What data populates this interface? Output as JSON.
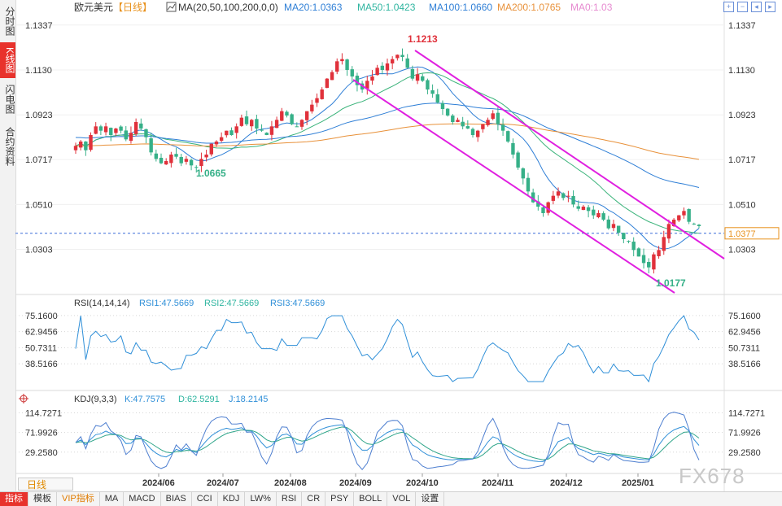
{
  "left_tabs": [
    {
      "label": "分时图",
      "active": false
    },
    {
      "label": "K线图",
      "active": true
    },
    {
      "label": "闪电图",
      "active": false
    },
    {
      "label": "合约资料",
      "active": false
    }
  ],
  "header": {
    "instrument": "欧元美元",
    "period_tag": "【日线】",
    "ma_label": "MA(20,50,100,200,0,0)",
    "ma_values": [
      {
        "text": "MA20:1.0363",
        "color": "#2f7fd6"
      },
      {
        "text": "MA50:1.0423",
        "color": "#2fb5a0"
      },
      {
        "text": "MA100:1.0660",
        "color": "#2f7fd6"
      },
      {
        "text": "MA200:1.0765",
        "color": "#e8913a"
      },
      {
        "text": "MA0:1.03",
        "color": "#e68ad0"
      }
    ]
  },
  "top_icons": [
    "zoom-in-icon",
    "zoom-out-icon",
    "prev-icon",
    "next-icon"
  ],
  "colors": {
    "up": "#e0313b",
    "down": "#36b088",
    "ma20": "#2f7fd6",
    "ma50": "#3ab37a",
    "ma100": "#2f7fd6",
    "ma200": "#e8913a",
    "channel": "#e020e0",
    "rsi": "#2f8fd8",
    "kdj_k": "#2f8fd8",
    "kdj_d": "#2fa58a",
    "kdj_j": "#4e7fd0"
  },
  "chart_data": {
    "type": "candlestick",
    "y_ticks": [
      "1.1337",
      "1.1130",
      "1.0923",
      "1.0717",
      "1.0510",
      "1.0303"
    ],
    "ylim": [
      1.014,
      1.137
    ],
    "x_ticks": [
      "2024/06",
      "2024/07",
      "2024/08",
      "2024/09",
      "2024/10",
      "2024/11",
      "2024/12",
      "2025/01"
    ],
    "current_price": "1.0377",
    "annotations": {
      "high": "1.1213",
      "low_left": "1.0665",
      "low_right": "1.0177"
    },
    "close_series": [
      1.078,
      1.08,
      1.076,
      1.083,
      1.087,
      1.085,
      1.087,
      1.083,
      1.086,
      1.085,
      1.081,
      1.084,
      1.089,
      1.086,
      1.082,
      1.075,
      1.072,
      1.07,
      1.071,
      1.074,
      1.073,
      1.07,
      1.072,
      1.069,
      1.068,
      1.072,
      1.074,
      1.079,
      1.08,
      1.082,
      1.085,
      1.083,
      1.087,
      1.091,
      1.088,
      1.09,
      1.086,
      1.085,
      1.083,
      1.087,
      1.09,
      1.094,
      1.092,
      1.088,
      1.087,
      1.09,
      1.094,
      1.097,
      1.1,
      1.104,
      1.109,
      1.112,
      1.117,
      1.118,
      1.113,
      1.11,
      1.106,
      1.104,
      1.108,
      1.11,
      1.114,
      1.113,
      1.116,
      1.118,
      1.12,
      1.119,
      1.114,
      1.109,
      1.111,
      1.108,
      1.104,
      1.102,
      1.098,
      1.095,
      1.092,
      1.089,
      1.09,
      1.087,
      1.086,
      1.083,
      1.085,
      1.088,
      1.09,
      1.093,
      1.088,
      1.085,
      1.08,
      1.074,
      1.068,
      1.063,
      1.057,
      1.052,
      1.05,
      1.047,
      1.052,
      1.055,
      1.057,
      1.054,
      1.055,
      1.051,
      1.049,
      1.05,
      1.048,
      1.046,
      1.047,
      1.044,
      1.04,
      1.042,
      1.038,
      1.035,
      1.034,
      1.03,
      1.027,
      1.024,
      1.022,
      1.028,
      1.03,
      1.036,
      1.042,
      1.044,
      1.046,
      1.048,
      1.043,
      1.042,
      1.041
    ],
    "rsi": {
      "label": "RSI(14,14,14)",
      "values": [
        {
          "text": "RSI1:47.5669",
          "color": "#2f8fd8"
        },
        {
          "text": "RSI2:47.5669",
          "color": "#2fb5a0"
        },
        {
          "text": "RSI3:47.5669",
          "color": "#2f8fd8"
        }
      ],
      "y_ticks": [
        "75.1600",
        "62.9456",
        "50.7311",
        "38.5166"
      ],
      "ylim": [
        22,
        80
      ]
    },
    "kdj": {
      "label": "KDJ(9,3,3)",
      "values": [
        {
          "text": "K:47.7575",
          "color": "#2f8fd8"
        },
        {
          "text": "D:62.5291",
          "color": "#2fb5a0"
        },
        {
          "text": "J:18.2145",
          "color": "#2f8fd8"
        }
      ],
      "y_ticks": [
        "114.7271",
        "71.9926",
        "29.2580"
      ],
      "ylim": [
        -10,
        128
      ]
    }
  },
  "period_button": "日线",
  "bottom_tabs": [
    {
      "label": "指标",
      "active": true
    },
    {
      "label": "模板"
    },
    {
      "label": "VIP指标",
      "vip": true
    },
    {
      "label": "MA"
    },
    {
      "label": "MACD"
    },
    {
      "label": "BIAS"
    },
    {
      "label": "CCI"
    },
    {
      "label": "KDJ"
    },
    {
      "label": "LW%"
    },
    {
      "label": "RSI"
    },
    {
      "label": "CR"
    },
    {
      "label": "PSY"
    },
    {
      "label": "BOLL"
    },
    {
      "label": "VOL"
    },
    {
      "label": "设置"
    }
  ],
  "watermark": "FX678"
}
